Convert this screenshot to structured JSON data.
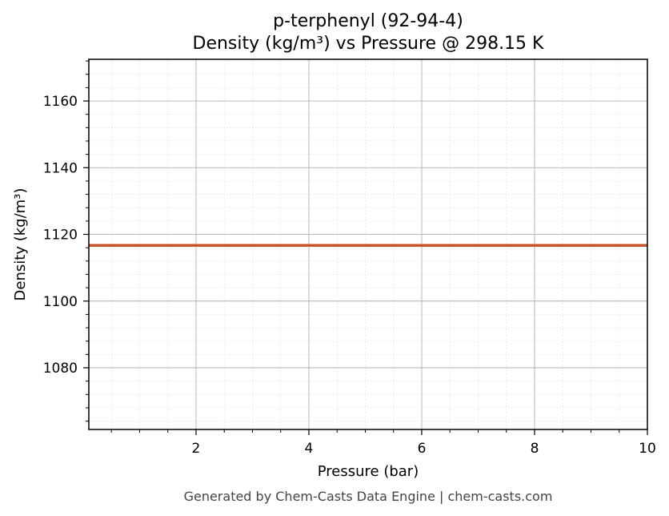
{
  "chart_data": {
    "type": "line",
    "title": "p-terphenyl (92-94-4)",
    "subtitle": "Density (kg/m³) vs Pressure @ 298.15 K",
    "xlabel": "Pressure (bar)",
    "ylabel": "Density (kg/m³)",
    "xlim": [
      0.1,
      10
    ],
    "ylim": [
      1061.5,
      1172.5
    ],
    "x_ticks": [
      2,
      4,
      6,
      8,
      10
    ],
    "y_ticks": [
      1080,
      1100,
      1120,
      1140,
      1160
    ],
    "grid": true,
    "series": [
      {
        "x": [
          0.1,
          10
        ],
        "y": [
          1116.7,
          1116.7
        ]
      }
    ]
  },
  "footer": "Generated by Chem-Casts Data Engine | chem-casts.com",
  "colors": {
    "line": "#c8532a",
    "grid_major": "#b0b0b0",
    "grid_minor": "#e0e0e0"
  }
}
